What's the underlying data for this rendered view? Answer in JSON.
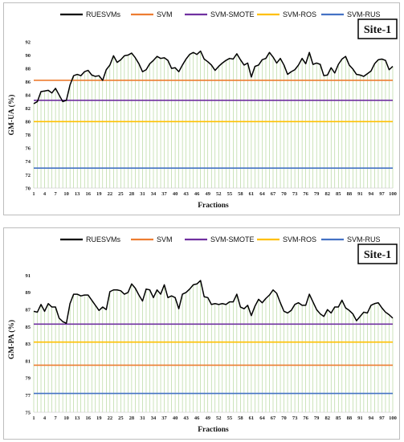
{
  "chart_data": [
    {
      "type": "line",
      "site_label": "Site-1",
      "xlabel": "Fractions",
      "ylabel": "GM-UA (%)",
      "ylim": [
        70,
        92
      ],
      "yticks": [
        70,
        72,
        74,
        76,
        78,
        80,
        82,
        84,
        86,
        88,
        90,
        92
      ],
      "xlim": [
        1,
        100
      ],
      "xticks": [
        1,
        4,
        7,
        10,
        13,
        16,
        19,
        22,
        25,
        28,
        31,
        34,
        37,
        40,
        43,
        46,
        49,
        52,
        55,
        58,
        61,
        64,
        67,
        70,
        73,
        76,
        79,
        82,
        85,
        88,
        91,
        94,
        97,
        100
      ],
      "legend": [
        "RUESVMs",
        "SVM",
        "SVM-SMOTE",
        "SVM-ROS",
        "SVM-RUS"
      ],
      "colors": {
        "RUESVMs": "#000000",
        "SVM": "#ed7d31",
        "SVM-SMOTE": "#7030a0",
        "SVM-ROS": "#ffc000",
        "SVM-RUS": "#4472c4",
        "drop_lines": "#a9d18e"
      },
      "series": [
        {
          "name": "RUESVMs",
          "values": [
            82.7,
            83.0,
            84.5,
            84.6,
            84.7,
            84.3,
            85.0,
            84.0,
            83.0,
            83.2,
            85.5,
            86.9,
            87.1,
            86.9,
            87.5,
            87.7,
            87.0,
            86.8,
            86.9,
            86.2,
            87.8,
            88.5,
            89.9,
            88.9,
            89.3,
            89.9,
            90.0,
            90.3,
            89.6,
            88.7,
            87.5,
            87.8,
            88.7,
            89.2,
            89.8,
            89.5,
            89.6,
            89.2,
            88.0,
            88.1,
            87.5,
            88.5,
            89.4,
            90.1,
            90.4,
            90.1,
            90.6,
            89.4,
            89.0,
            88.5,
            87.7,
            88.3,
            88.8,
            89.2,
            89.5,
            89.4,
            90.2,
            89.3,
            88.5,
            88.8,
            86.7,
            88.3,
            88.5,
            89.3,
            89.5,
            90.4,
            89.7,
            88.8,
            89.5,
            88.5,
            87.1,
            87.5,
            87.8,
            88.5,
            89.5,
            88.7,
            90.4,
            88.6,
            88.8,
            88.6,
            86.9,
            87.0,
            88.1,
            87.3,
            88.6,
            89.4,
            89.8,
            88.5,
            87.9,
            87.1,
            87.0,
            86.8,
            87.2,
            87.6,
            88.7,
            89.3,
            89.4,
            89.2,
            87.8,
            88.3
          ]
        },
        {
          "name": "SVM",
          "values": [
            86.2
          ]
        },
        {
          "name": "SVM-SMOTE",
          "values": [
            83.2
          ]
        },
        {
          "name": "SVM-ROS",
          "values": [
            80.0
          ]
        },
        {
          "name": "SVM-RUS",
          "values": [
            73.0
          ]
        }
      ]
    },
    {
      "type": "line",
      "site_label": "Site-1",
      "xlabel": "Fractions",
      "ylabel": "GM-PA (%)",
      "ylim": [
        75,
        92
      ],
      "yticks": [
        75,
        77,
        79,
        81,
        83,
        85,
        87,
        89,
        91
      ],
      "xlim": [
        1,
        100
      ],
      "xticks": [
        1,
        4,
        7,
        10,
        13,
        16,
        19,
        22,
        25,
        28,
        31,
        34,
        37,
        40,
        43,
        46,
        49,
        52,
        55,
        58,
        61,
        64,
        67,
        70,
        73,
        76,
        79,
        82,
        85,
        88,
        91,
        94,
        97,
        100
      ],
      "legend": [
        "RUESVMs",
        "SVM",
        "SVM-SMOTE",
        "SVM-ROS",
        "SVM-RUS"
      ],
      "colors": {
        "RUESVMs": "#000000",
        "SVM": "#ed7d31",
        "SVM-SMOTE": "#7030a0",
        "SVM-ROS": "#ffc000",
        "SVM-RUS": "#4472c4",
        "drop_lines": "#a9d18e"
      },
      "series": [
        {
          "name": "RUESVMs",
          "values": [
            86.8,
            86.7,
            87.6,
            86.8,
            87.7,
            87.3,
            87.3,
            86.0,
            85.6,
            85.4,
            87.7,
            88.8,
            88.8,
            88.6,
            88.7,
            88.7,
            88.1,
            87.5,
            86.9,
            87.3,
            87.0,
            89.1,
            89.3,
            89.3,
            89.2,
            88.8,
            89.0,
            90.0,
            89.5,
            88.7,
            88.0,
            89.4,
            89.3,
            88.4,
            89.3,
            88.8,
            89.9,
            88.4,
            88.6,
            88.4,
            87.1,
            88.8,
            89.0,
            89.4,
            89.9,
            90.0,
            90.4,
            88.5,
            88.4,
            87.6,
            87.7,
            87.6,
            87.7,
            87.6,
            87.9,
            87.9,
            88.8,
            87.3,
            87.1,
            87.5,
            86.3,
            87.4,
            88.2,
            87.8,
            88.3,
            88.7,
            89.3,
            88.9,
            87.8,
            86.8,
            86.6,
            86.9,
            87.6,
            87.8,
            87.5,
            87.5,
            88.8,
            87.9,
            87.0,
            86.5,
            86.2,
            87.0,
            86.6,
            87.3,
            87.3,
            88.1,
            87.2,
            86.9,
            86.5,
            85.7,
            86.2,
            86.7,
            86.6,
            87.5,
            87.7,
            87.8,
            87.2,
            86.7,
            86.4,
            86.0
          ]
        },
        {
          "name": "SVM",
          "values": [
            80.5
          ]
        },
        {
          "name": "SVM-SMOTE",
          "values": [
            85.3
          ]
        },
        {
          "name": "SVM-ROS",
          "values": [
            83.2
          ]
        },
        {
          "name": "SVM-RUS",
          "values": [
            77.2
          ]
        }
      ]
    }
  ]
}
